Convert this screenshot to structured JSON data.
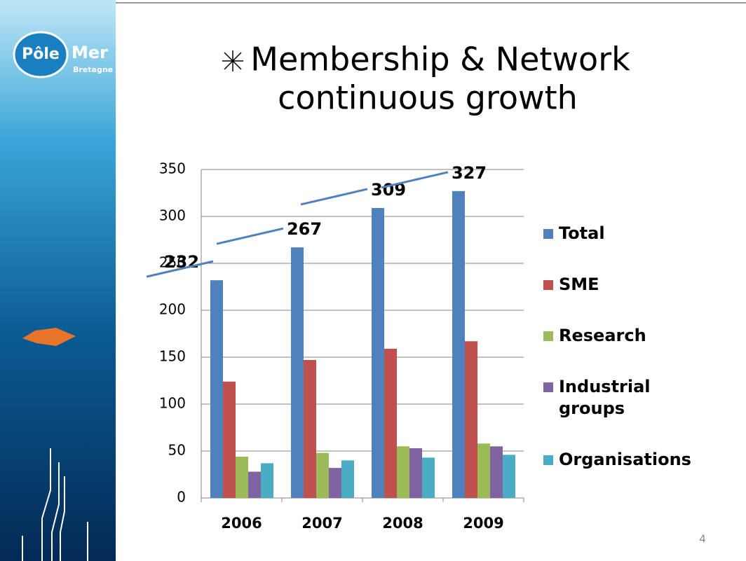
{
  "slide": {
    "title": [
      "Membership & Network",
      "continuous growth"
    ],
    "logo": [
      "Pôle",
      "Mer",
      "Bretagne"
    ],
    "page_number": "4"
  },
  "chart_data": {
    "type": "bar",
    "categories": [
      "2006",
      "2007",
      "2008",
      "2009"
    ],
    "series": [
      {
        "name": "Total",
        "color": "#4f81bd",
        "values": [
          232,
          267,
          309,
          327
        ]
      },
      {
        "name": "SME",
        "color": "#c0504d",
        "values": [
          124,
          147,
          159,
          167
        ]
      },
      {
        "name": "Research",
        "color": "#9bbb59",
        "values": [
          44,
          48,
          55,
          58
        ]
      },
      {
        "name": "Industrial groups",
        "color": "#8064a2",
        "values": [
          28,
          32,
          53,
          55
        ]
      },
      {
        "name": "Organisations",
        "color": "#4bacc6",
        "values": [
          37,
          40,
          43,
          46
        ]
      }
    ],
    "ylim": [
      0,
      350
    ],
    "yticks": [
      0,
      50,
      100,
      150,
      200,
      250,
      300,
      350
    ],
    "grid": true,
    "legend": "right",
    "labeled_series": 0
  }
}
